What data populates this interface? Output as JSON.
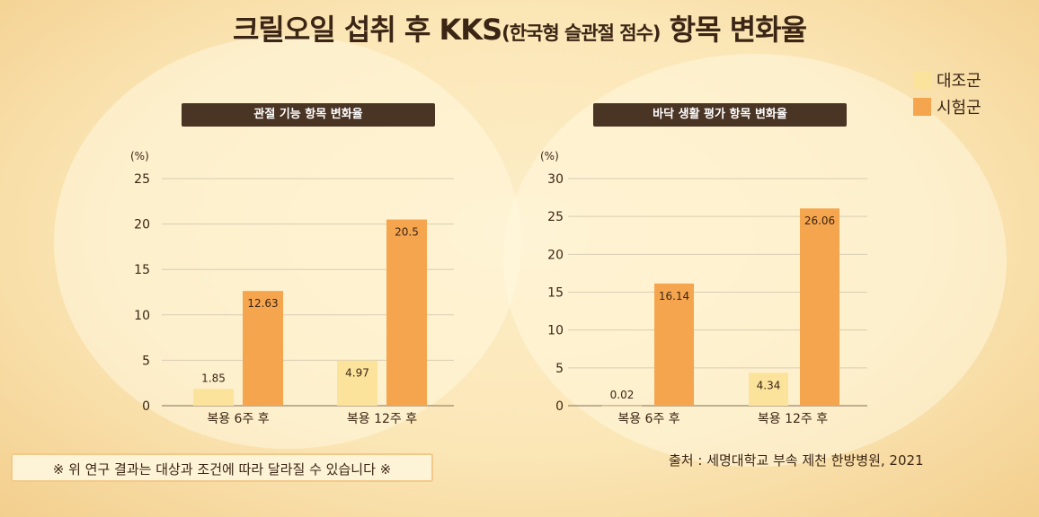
{
  "title": {
    "main_prefix": "크릴오일 섭취 후 KKS",
    "main_paren": "(한국형 슬관절 점수)",
    "main_suffix": " 항목 변화율"
  },
  "legend": [
    {
      "label": "대조군",
      "color": "#fce39c"
    },
    {
      "label": "시험군",
      "color": "#f5a54e"
    }
  ],
  "chart_data": [
    {
      "type": "bar",
      "title": "관절 기능 항목 변화율",
      "unit": "(%)",
      "categories": [
        "복용 6주 후",
        "복용 12주 후"
      ],
      "series": [
        {
          "name": "대조군",
          "values": [
            1.85,
            4.97
          ],
          "labels": [
            "1.85",
            "4.97"
          ]
        },
        {
          "name": "시험군",
          "values": [
            12.63,
            20.5
          ],
          "labels": [
            "12.63",
            "20.5"
          ]
        }
      ],
      "ylim": [
        0,
        25
      ],
      "yticks": [
        0,
        5,
        10,
        15,
        20,
        25
      ],
      "grid": true
    },
    {
      "type": "bar",
      "title": "바닥 생활 평가 항목 변화율",
      "unit": "(%)",
      "categories": [
        "복용 6주 후",
        "복용 12주 후"
      ],
      "series": [
        {
          "name": "대조군",
          "values": [
            0.02,
            4.34
          ],
          "labels": [
            "0.02",
            "4.34"
          ]
        },
        {
          "name": "시험군",
          "values": [
            16.14,
            26.06
          ],
          "labels": [
            "16.14",
            "26.06"
          ]
        }
      ],
      "ylim": [
        0,
        30
      ],
      "yticks": [
        0,
        5,
        10,
        15,
        20,
        25,
        30
      ],
      "grid": true
    }
  ],
  "note": "※ 위 연구 결과는 대상과 조건에 따라 달라질 수 있습니다 ※",
  "source": "출처 : 세명대학교 부속 제천 한방병원, 2021"
}
